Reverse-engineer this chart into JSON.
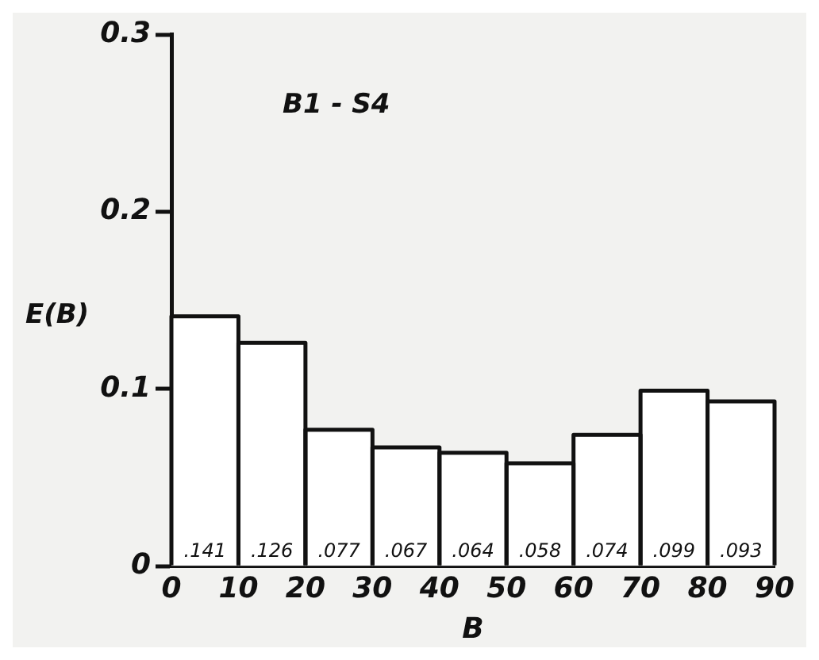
{
  "chart_data": {
    "type": "histogram",
    "bins": [
      0,
      10,
      20,
      30,
      40,
      50,
      60,
      70,
      80,
      90
    ],
    "values": [
      0.141,
      0.126,
      0.077,
      0.067,
      0.064,
      0.058,
      0.074,
      0.099,
      0.093
    ],
    "value_labels": [
      ".141",
      ".126",
      ".077",
      ".067",
      ".064",
      ".058",
      ".074",
      ".099",
      ".093"
    ],
    "color": "#ffffff",
    "xlabel": "B",
    "ylabel": "E(B)",
    "annotations": [
      "B1 - S4"
    ],
    "xlim": [
      0,
      90
    ],
    "xticks": [
      0,
      10,
      20,
      30,
      40,
      50,
      60,
      70,
      80,
      90
    ],
    "ylim": [
      0,
      0.3
    ],
    "yticks": [
      0,
      0.1,
      0.2,
      0.3
    ],
    "grid": false,
    "legend": false
  }
}
